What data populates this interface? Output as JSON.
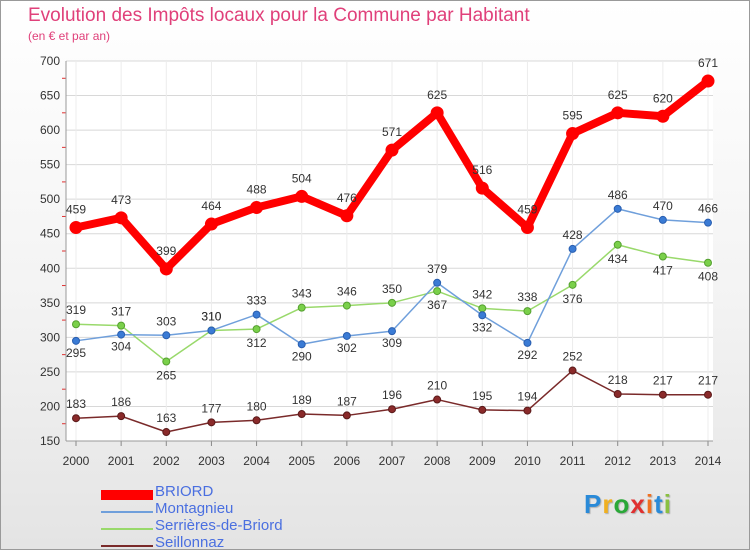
{
  "title": "Evolution des Impôts locaux pour la Commune par Habitant",
  "subtitle": "(en € et par an)",
  "logo_text": "Proxiti",
  "chart_data": {
    "type": "line",
    "title": "Evolution des Impôts locaux pour la Commune par Habitant",
    "subtitle": "(en € et par an)",
    "xlabel": "",
    "ylabel": "",
    "x": [
      "2000",
      "2001",
      "2002",
      "2003",
      "2004",
      "2005",
      "2006",
      "2007",
      "2008",
      "2009",
      "2010",
      "2011",
      "2012",
      "2013",
      "2014"
    ],
    "ylim": [
      150,
      700
    ],
    "yticks": [
      150,
      200,
      250,
      300,
      350,
      400,
      450,
      500,
      550,
      600,
      650,
      700
    ],
    "series": [
      {
        "name": "BRIORD",
        "color": "#ff0000",
        "values": [
          459,
          473,
          399,
          464,
          488,
          504,
          476,
          571,
          625,
          516,
          459,
          595,
          625,
          620,
          671
        ],
        "labels": [
          "459",
          "473",
          "399",
          "464",
          "488",
          "504",
          "476",
          "571",
          "625",
          "516",
          "459",
          "595",
          "625",
          "620",
          "671"
        ]
      },
      {
        "name": "Montagnieu",
        "color": "#6f9fdb",
        "values": [
          295,
          304,
          303,
          310,
          333,
          290,
          302,
          309,
          379,
          332,
          292,
          428,
          486,
          470,
          466
        ],
        "labels": [
          "295",
          "304",
          "303",
          "310",
          "333",
          "290",
          "302",
          "309",
          "379",
          "332",
          "292",
          "428",
          "486",
          "470",
          "466"
        ]
      },
      {
        "name": "Serrières-de-Briord",
        "color": "#99d96b",
        "values": [
          319,
          317,
          265,
          310,
          312,
          343,
          346,
          350,
          367,
          342,
          338,
          376,
          434,
          417,
          408
        ],
        "labels": [
          "319",
          "317",
          "265",
          "310",
          "312",
          "343",
          "346",
          "350",
          "367",
          "342",
          "338",
          "376",
          "434",
          "417",
          "408"
        ]
      },
      {
        "name": "Seillonnaz",
        "color": "#7a2a2a",
        "values": [
          183,
          186,
          163,
          177,
          180,
          189,
          187,
          196,
          210,
          195,
          194,
          252,
          218,
          217,
          217
        ],
        "labels": [
          "183",
          "186",
          "163",
          "177",
          "180",
          "189",
          "187",
          "196",
          "210",
          "195",
          "194",
          "252",
          "218",
          "217",
          "217"
        ]
      }
    ],
    "legend_position": "bottom-left"
  },
  "colors": {
    "title": "#e0407a",
    "axis_text": "#333333",
    "legend_text": "#4a6fe0",
    "grid": "#d8d8d8"
  }
}
